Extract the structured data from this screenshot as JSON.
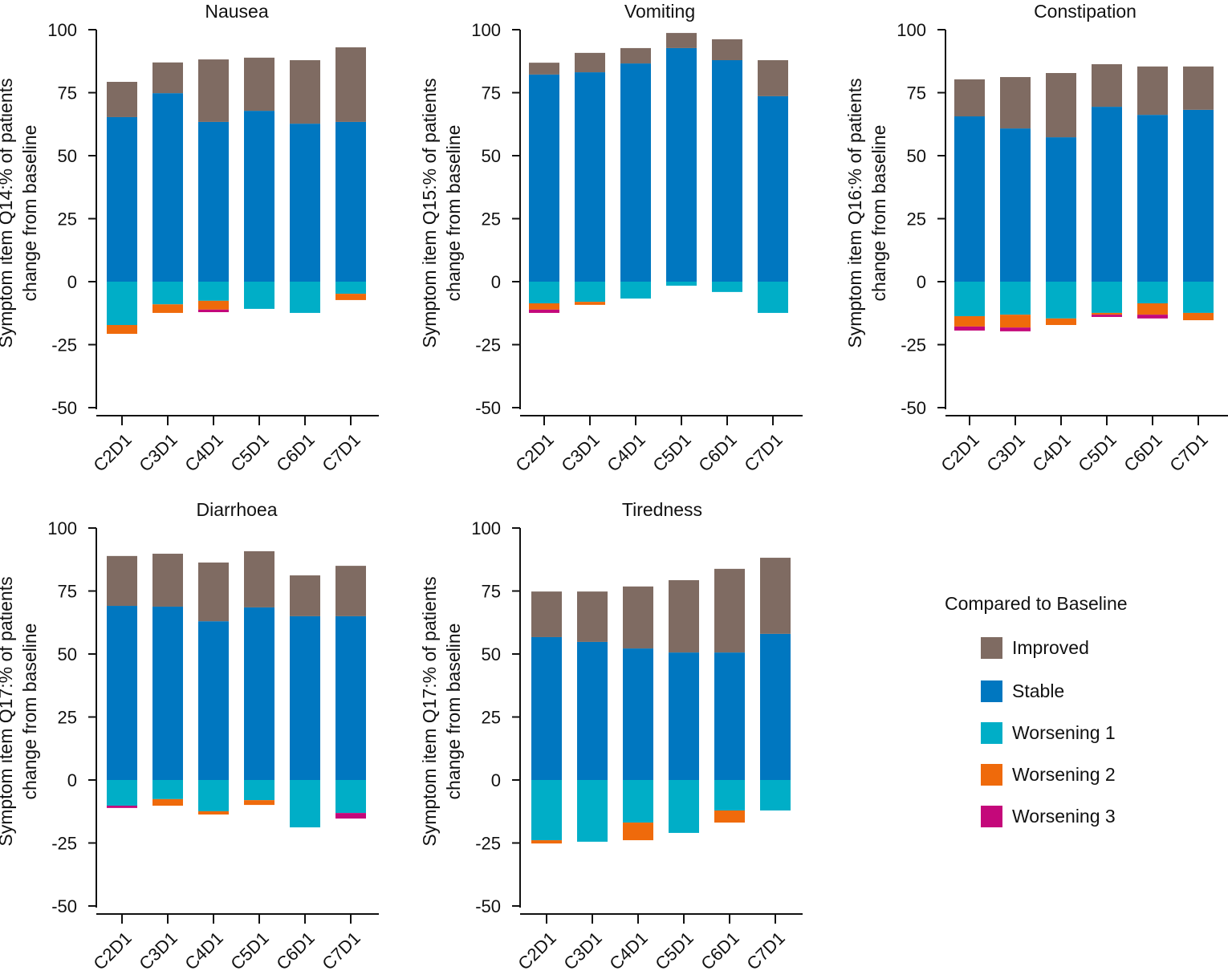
{
  "chart_data": [
    {
      "type": "bar",
      "stacked": true,
      "title": "Nausea",
      "ylabel": [
        "Symptom item Q14:% of patients",
        "change from baseline"
      ],
      "ylim": [
        -50,
        100
      ],
      "yticks": [
        "100",
        "75",
        "50",
        "25",
        "0",
        "-25",
        "-50"
      ],
      "categories": [
        "C2D1",
        "C3D1",
        "C4D1",
        "C5D1",
        "C6D1",
        "C7D1"
      ],
      "series": [
        {
          "name": "Improved",
          "values": [
            14.0,
            12.2,
            24.8,
            21.1,
            25.2,
            29.6
          ]
        },
        {
          "name": "Stable",
          "values": [
            65.3,
            74.8,
            63.4,
            67.8,
            62.7,
            63.4
          ]
        },
        {
          "name": "Worsening 1",
          "values": [
            -17.2,
            -9.0,
            -7.6,
            -10.8,
            -12.4,
            -4.8
          ]
        },
        {
          "name": "Worsening 2",
          "values": [
            -3.5,
            -3.4,
            -3.5,
            0,
            0,
            -2.5
          ]
        },
        {
          "name": "Worsening 3",
          "values": [
            0,
            0,
            -1.0,
            0,
            0,
            0
          ]
        }
      ]
    },
    {
      "type": "bar",
      "stacked": true,
      "title": "Vomiting",
      "ylabel": [
        "Symptom item Q15:% of patients",
        "change from baseline"
      ],
      "ylim": [
        -50,
        100
      ],
      "yticks": [
        "100",
        "75",
        "50",
        "25",
        "0",
        "-25",
        "-50"
      ],
      "categories": [
        "C2D1",
        "C3D1",
        "C4D1",
        "C5D1",
        "C6D1",
        "C7D1"
      ],
      "series": [
        {
          "name": "Improved",
          "values": [
            4.7,
            7.7,
            6.1,
            6.0,
            8.3,
            14.3
          ]
        },
        {
          "name": "Stable",
          "values": [
            82.2,
            83.1,
            86.6,
            92.7,
            87.9,
            73.6
          ]
        },
        {
          "name": "Worsening 1",
          "values": [
            -8.6,
            -8.0,
            -6.7,
            -1.6,
            -4.1,
            -12.4
          ]
        },
        {
          "name": "Worsening 2",
          "values": [
            -2.5,
            -1.2,
            0,
            0,
            0,
            0
          ]
        },
        {
          "name": "Worsening 3",
          "values": [
            -1.3,
            0,
            0,
            0,
            0,
            0
          ]
        }
      ]
    },
    {
      "type": "bar",
      "stacked": true,
      "title": "Constipation",
      "ylabel": [
        "Symptom item Q16:% of patients",
        "change from baseline"
      ],
      "ylim": [
        -50,
        100
      ],
      "yticks": [
        "100",
        "75",
        "50",
        "25",
        "0",
        "-25",
        "-50"
      ],
      "categories": [
        "C2D1",
        "C3D1",
        "C4D1",
        "C5D1",
        "C6D1",
        "C7D1"
      ],
      "series": [
        {
          "name": "Improved",
          "values": [
            14.7,
            20.4,
            25.5,
            16.9,
            19.2,
            17.2
          ]
        },
        {
          "name": "Stable",
          "values": [
            65.6,
            60.8,
            57.3,
            69.4,
            66.2,
            68.2
          ]
        },
        {
          "name": "Worsening 1",
          "values": [
            -13.7,
            -13.1,
            -14.6,
            -12.4,
            -8.6,
            -12.4
          ]
        },
        {
          "name": "Worsening 2",
          "values": [
            -4.1,
            -5.1,
            -2.6,
            -0.7,
            -4.5,
            -2.9
          ]
        },
        {
          "name": "Worsening 3",
          "values": [
            -1.6,
            -1.5,
            0,
            -0.9,
            -1.5,
            0
          ]
        }
      ]
    },
    {
      "type": "bar",
      "stacked": true,
      "title": "Diarrhoea",
      "ylabel": [
        "Symptom item Q17:% of patients",
        "change from baseline"
      ],
      "ylim": [
        -50,
        100
      ],
      "yticks": [
        "100",
        "75",
        "50",
        "25",
        "0",
        "-25",
        "-50"
      ],
      "categories": [
        "C2D1",
        "C3D1",
        "C4D1",
        "C5D1",
        "C6D1",
        "C7D1"
      ],
      "series": [
        {
          "name": "Improved",
          "values": [
            19.8,
            21.0,
            23.3,
            22.3,
            16.2,
            20.0
          ]
        },
        {
          "name": "Stable",
          "values": [
            69.1,
            68.8,
            63.0,
            68.5,
            65.0,
            65.0
          ]
        },
        {
          "name": "Worsening 1",
          "values": [
            -10.2,
            -7.6,
            -12.4,
            -8.0,
            -18.8,
            -13.1
          ]
        },
        {
          "name": "Worsening 2",
          "values": [
            0,
            -2.6,
            -1.3,
            -1.9,
            0,
            0
          ]
        },
        {
          "name": "Worsening 3",
          "values": [
            -0.9,
            0,
            0,
            0,
            0,
            -2.2
          ]
        }
      ]
    },
    {
      "type": "bar",
      "stacked": true,
      "title": "Tiredness",
      "ylabel": [
        "Symptom item Q17:% of patients",
        "change from baseline"
      ],
      "ylim": [
        -50,
        100
      ],
      "yticks": [
        "100",
        "75",
        "50",
        "25",
        "0",
        "-25",
        "-50"
      ],
      "categories": [
        "C2D1",
        "C3D1",
        "C4D1",
        "C5D1",
        "C6D1",
        "C7D1"
      ],
      "series": [
        {
          "name": "Improved",
          "values": [
            18.1,
            20.0,
            24.6,
            28.7,
            33.2,
            30.2
          ]
        },
        {
          "name": "Stable",
          "values": [
            56.7,
            54.8,
            52.2,
            50.6,
            50.6,
            58.0
          ]
        },
        {
          "name": "Worsening 1",
          "values": [
            -23.9,
            -24.5,
            -16.9,
            -21.0,
            -12.1,
            -12.1
          ]
        },
        {
          "name": "Worsening 2",
          "values": [
            -1.3,
            0,
            -7.0,
            0,
            -4.8,
            0
          ]
        },
        {
          "name": "Worsening 3",
          "values": [
            0,
            0,
            0,
            0,
            0,
            0
          ]
        }
      ]
    }
  ],
  "legend": {
    "title": "Compared to Baseline",
    "placement": "right",
    "items": [
      {
        "label": "Improved",
        "color": "#7f6b62"
      },
      {
        "label": "Stable",
        "color": "#0077c0"
      },
      {
        "label": "Worsening 1",
        "color": "#00aec7"
      },
      {
        "label": "Worsening 2",
        "color": "#ef6a0b"
      },
      {
        "label": "Worsening 3",
        "color": "#c4087a"
      }
    ]
  }
}
